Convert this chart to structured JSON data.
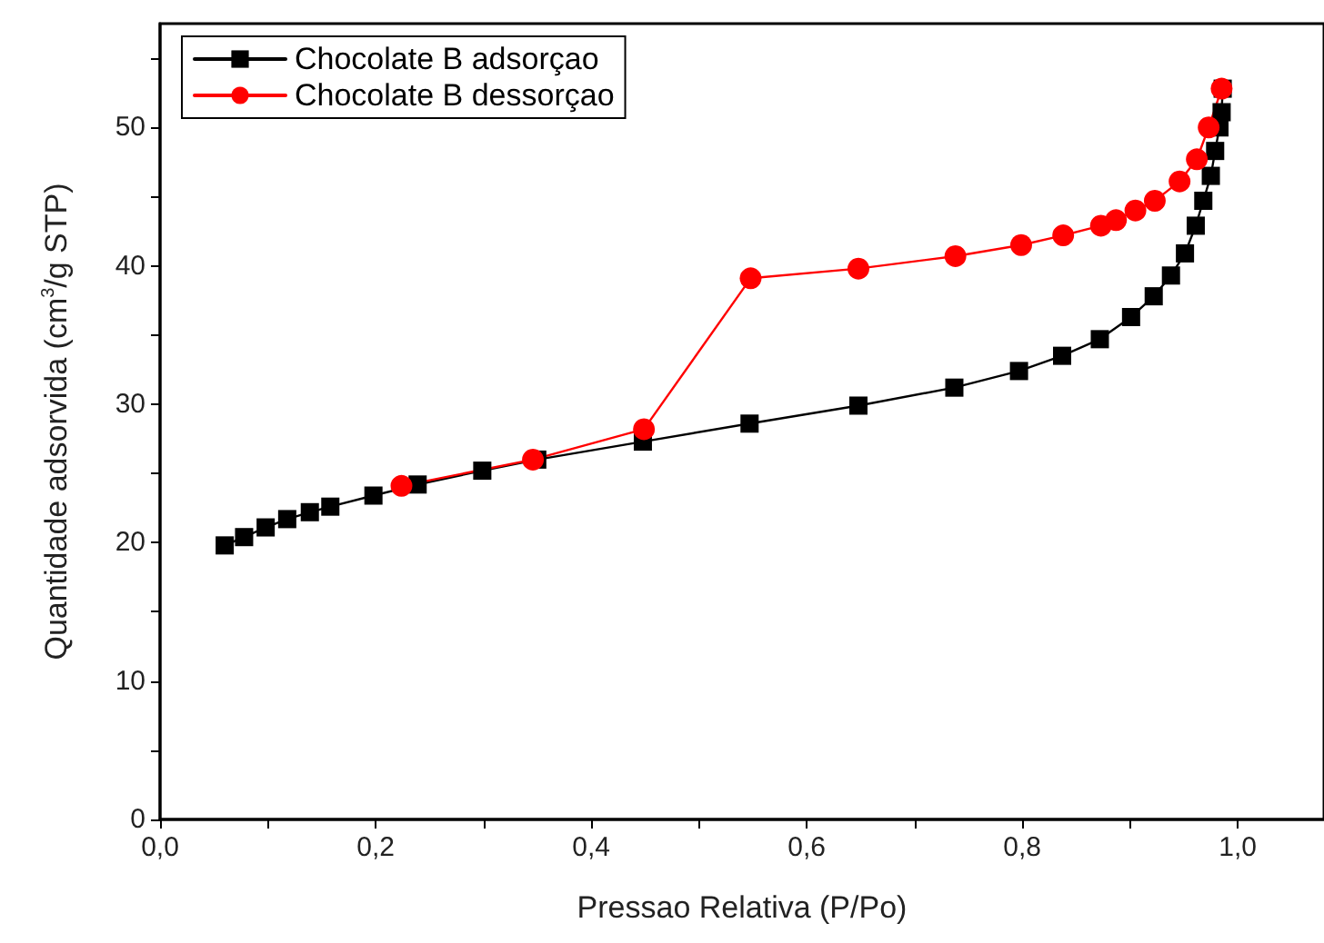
{
  "chart_data": {
    "type": "line",
    "xlabel": "Pressao Relativa (P/Po)",
    "ylabel": "Quantidade adsorvida (cm$^{3}$/g STP)",
    "xlim": [
      0,
      1.08
    ],
    "ylim": [
      0,
      57.5
    ],
    "xticks": [
      {
        "value": 0,
        "label": "0,0"
      },
      {
        "value": 0.1,
        "label": null
      },
      {
        "value": 0.2,
        "label": "0,2"
      },
      {
        "value": 0.3,
        "label": null
      },
      {
        "value": 0.4,
        "label": "0,4"
      },
      {
        "value": 0.5,
        "label": null
      },
      {
        "value": 0.6,
        "label": "0,6"
      },
      {
        "value": 0.7,
        "label": null
      },
      {
        "value": 0.8,
        "label": "0,8"
      },
      {
        "value": 0.9,
        "label": null
      },
      {
        "value": 1.0,
        "label": "1,0"
      }
    ],
    "yticks": [
      0,
      {
        "value": 5,
        "label": null
      },
      10,
      {
        "value": 15,
        "label": null
      },
      20,
      {
        "value": 25,
        "label": null
      },
      30,
      {
        "value": 35,
        "label": null
      },
      40,
      {
        "value": 45,
        "label": null
      },
      50,
      {
        "value": 55,
        "label": null
      }
    ],
    "grid": false,
    "legend": "top left",
    "line_style": "solid",
    "series": [
      {
        "name": "Chocolate B adsorçao",
        "color": "#000000",
        "marker": "square",
        "x": [
          0.06,
          0.078,
          0.098,
          0.118,
          0.139,
          0.158,
          0.198,
          0.239,
          0.299,
          0.35,
          0.448,
          0.547,
          0.648,
          0.737,
          0.797,
          0.837,
          0.872,
          0.901,
          0.922,
          0.938,
          0.951,
          0.961,
          0.968,
          0.975,
          0.979,
          0.983,
          0.985,
          0.986
        ],
        "values": [
          19.8,
          20.4,
          21.1,
          21.7,
          22.2,
          22.6,
          23.4,
          24.2,
          25.2,
          26.0,
          27.3,
          28.6,
          29.9,
          31.2,
          32.4,
          33.5,
          34.7,
          36.3,
          37.8,
          39.3,
          40.9,
          42.9,
          44.7,
          46.5,
          48.3,
          50.0,
          51.1,
          52.8
        ]
      },
      {
        "name": "Chocolate B dessorçao",
        "color": "#ff0000",
        "marker": "circle",
        "x": [
          0.985,
          0.973,
          0.962,
          0.946,
          0.923,
          0.905,
          0.887,
          0.873,
          0.838,
          0.799,
          0.738,
          0.648,
          0.548,
          0.449,
          0.346,
          0.224
        ],
        "values": [
          52.8,
          50.0,
          47.7,
          46.1,
          44.7,
          44.0,
          43.3,
          42.9,
          42.2,
          41.5,
          40.7,
          39.8,
          39.1,
          28.2,
          26.0,
          24.1
        ]
      }
    ]
  }
}
